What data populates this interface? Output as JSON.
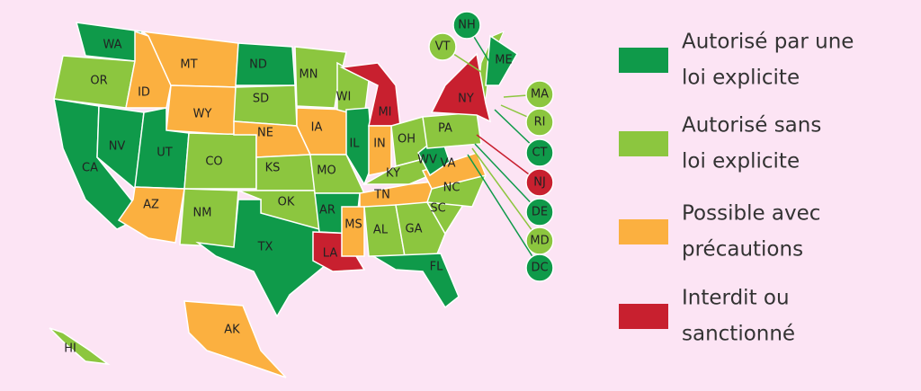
{
  "legend": [
    {
      "label_lines": [
        "Autorisé par une",
        "loi explicite"
      ],
      "color": "#0f9a4a"
    },
    {
      "label_lines": [
        "Autorisé sans",
        "loi explicite"
      ],
      "color": "#8cc63f"
    },
    {
      "label_lines": [
        "Possible avec",
        "précautions"
      ],
      "color": "#fbb040"
    },
    {
      "label_lines": [
        "Interdit ou",
        "sanctionné"
      ],
      "color": "#c8202f"
    }
  ],
  "states": [
    {
      "code": "WA",
      "category": 0
    },
    {
      "code": "OR",
      "category": 1
    },
    {
      "code": "CA",
      "category": 0
    },
    {
      "code": "NV",
      "category": 0
    },
    {
      "code": "ID",
      "category": 2
    },
    {
      "code": "MT",
      "category": 2
    },
    {
      "code": "WY",
      "category": 2
    },
    {
      "code": "UT",
      "category": 0
    },
    {
      "code": "AZ",
      "category": 2
    },
    {
      "code": "CO",
      "category": 1
    },
    {
      "code": "NM",
      "category": 1
    },
    {
      "code": "ND",
      "category": 0
    },
    {
      "code": "SD",
      "category": 1
    },
    {
      "code": "NE",
      "category": 2
    },
    {
      "code": "KS",
      "category": 1
    },
    {
      "code": "OK",
      "category": 1
    },
    {
      "code": "TX",
      "category": 0
    },
    {
      "code": "MN",
      "category": 1
    },
    {
      "code": "IA",
      "category": 2
    },
    {
      "code": "MO",
      "category": 1
    },
    {
      "code": "AR",
      "category": 0
    },
    {
      "code": "LA",
      "category": 3
    },
    {
      "code": "WI",
      "category": 1
    },
    {
      "code": "IL",
      "category": 0
    },
    {
      "code": "MI",
      "category": 3
    },
    {
      "code": "IN",
      "category": 2
    },
    {
      "code": "OH",
      "category": 1
    },
    {
      "code": "KY",
      "category": 1
    },
    {
      "code": "TN",
      "category": 2
    },
    {
      "code": "MS",
      "category": 2
    },
    {
      "code": "AL",
      "category": 1
    },
    {
      "code": "GA",
      "category": 1
    },
    {
      "code": "FL",
      "category": 0
    },
    {
      "code": "SC",
      "category": 1
    },
    {
      "code": "NC",
      "category": 1
    },
    {
      "code": "VA",
      "category": 2
    },
    {
      "code": "WV",
      "category": 0
    },
    {
      "code": "PA",
      "category": 1
    },
    {
      "code": "NY",
      "category": 3
    },
    {
      "code": "ME",
      "category": 0
    },
    {
      "code": "AK",
      "category": 2
    },
    {
      "code": "HI",
      "category": 1
    }
  ],
  "callouts": [
    {
      "code": "NH",
      "category": 0
    },
    {
      "code": "VT",
      "category": 1
    },
    {
      "code": "MA",
      "category": 1
    },
    {
      "code": "RI",
      "category": 1
    },
    {
      "code": "CT",
      "category": 0
    },
    {
      "code": "NJ",
      "category": 3
    },
    {
      "code": "DE",
      "category": 0
    },
    {
      "code": "MD",
      "category": 1
    },
    {
      "code": "DC",
      "category": 0
    }
  ]
}
